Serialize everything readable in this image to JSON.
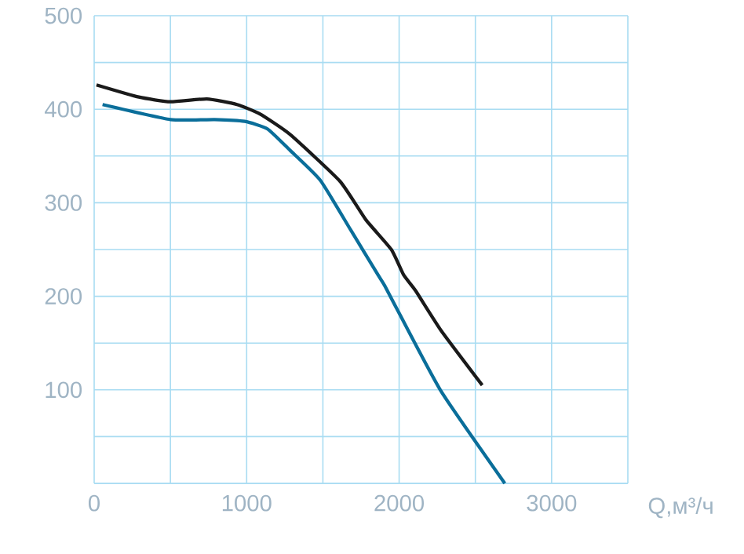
{
  "chart_data": {
    "type": "line",
    "xlabel": "Q,м³/ч",
    "xlim": [
      0,
      3500
    ],
    "ylim": [
      0,
      500
    ],
    "xticks": [
      0,
      {
        "value": 500,
        "label": null
      },
      1000,
      {
        "value": 1500,
        "label": null
      },
      2000,
      {
        "value": 2500,
        "label": null
      },
      3000,
      {
        "value": 3500,
        "label": null
      }
    ],
    "yticks": [
      {
        "value": 0,
        "label": null
      },
      {
        "value": 50,
        "label": null
      },
      100,
      {
        "value": 150,
        "label": null
      },
      200,
      {
        "value": 250,
        "label": null
      },
      300,
      {
        "value": 350,
        "label": null
      },
      400,
      {
        "value": 450,
        "label": null
      },
      500
    ],
    "grid": true,
    "marker": "none",
    "line_style": "solid",
    "series": [
      {
        "color": "#1a1a1a",
        "x": [
          15,
          293,
          500,
          739,
          937,
          1086,
          1285,
          1612,
          1781,
          1949,
          2029,
          2108,
          2277,
          2545
        ],
        "values": [
          426,
          413,
          408,
          411,
          405,
          395,
          373,
          323,
          282,
          250,
          223,
          206,
          163,
          105
        ]
      },
      {
        "color": "#0a6e9a",
        "x": [
          55,
          500,
          789,
          987,
          1136,
          1285,
          1483,
          1682,
          1861,
          1910,
          2000,
          2277,
          2693
        ],
        "values": [
          405,
          389,
          389,
          387,
          379,
          356,
          324,
          271,
          223,
          210,
          182,
          98,
          0
        ]
      }
    ]
  }
}
